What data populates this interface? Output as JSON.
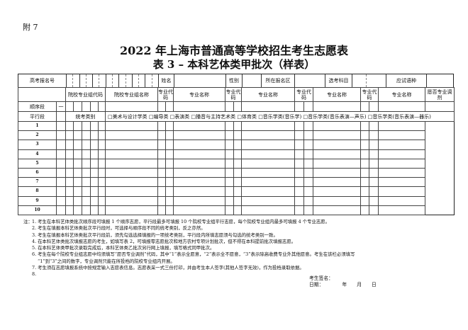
{
  "attachment": "附 7",
  "title": "2022 年上海市普通高等学校招生考生志愿表",
  "subtitle": "表 3 –  本科艺体类甲批次（样表）",
  "row1": {
    "exam_no_label": "高考报名号",
    "name_label": "姓名",
    "gender_label": "性别",
    "district_label": "所在报名区",
    "subjects_label": "选考科目",
    "language_label": "应试语种"
  },
  "header": {
    "group_code": "院校专业组代码",
    "group_name": "院校专业组名称",
    "major_code": "专业代码",
    "major_name": "专业名称",
    "adjust": "愿否专业调剂"
  },
  "sequential": {
    "label": "顺序段",
    "index": "一"
  },
  "parallel": {
    "label": "平行段",
    "category_label": "统考类别",
    "options": "□美术与设计学类 □编导类 □表演类 □播音与主持艺术类 □体育类 □音乐学类(音乐学) □音乐学类(音乐表演—声乐) □音乐学类(音乐表演—器乐)",
    "rows": [
      "1",
      "2",
      "3",
      "4",
      "5",
      "6",
      "7",
      "8",
      "9",
      "10"
    ]
  },
  "notes": {
    "label": "注：",
    "items": [
      "1. 考生在本科艺体类批次顺序段可填报 1 个顺序志愿，平行段最多可填报 10 个院校专业组平行志愿，每个院校专业组内最多可填报 4 个专业志愿。",
      "2. 考生在填报本科艺体类批次平行段时，可选择与顺序段不同的统考类别，反之亦然。",
      "3. 考生在填报本科艺体类批次平行段前，须先勾选选择填报的一项统考类别，平行段内所填志愿须与勾选的统考类别一致。",
      "4. 在本科艺体类批次填报志愿的考生，如填写表 2，可填报零志愿批次和地方农村专项计划批次，但不得在本科提前批次填报志愿。",
      "5. 在本科艺体类甲批次录取完成后，本科艺体类乙批次另行网上填报，填写格式同甲批次。",
      "6. 考生在每个院校专业组志愿中均须填写“愿否专业调剂”代码，其中“1”表示全愿意，“2”表示全不愿意，“3”表示除高收费专业外其他愿意。考生在该栏必须填写",
      "“1”到“3”之间的数字，专业调剂只能在所投档的院校专业组内开展。",
      "7. 考生须在志愿填报系统中按规定输入志愿表信息。志愿表采一式三份打印，并由考生本人签字(其他人签字无效)，作为投档录取依据。",
      "8."
    ]
  },
  "signature": {
    "sign_label": "考生签名：",
    "date_label": "日期：",
    "year": "年",
    "month": "月",
    "day": "日"
  }
}
